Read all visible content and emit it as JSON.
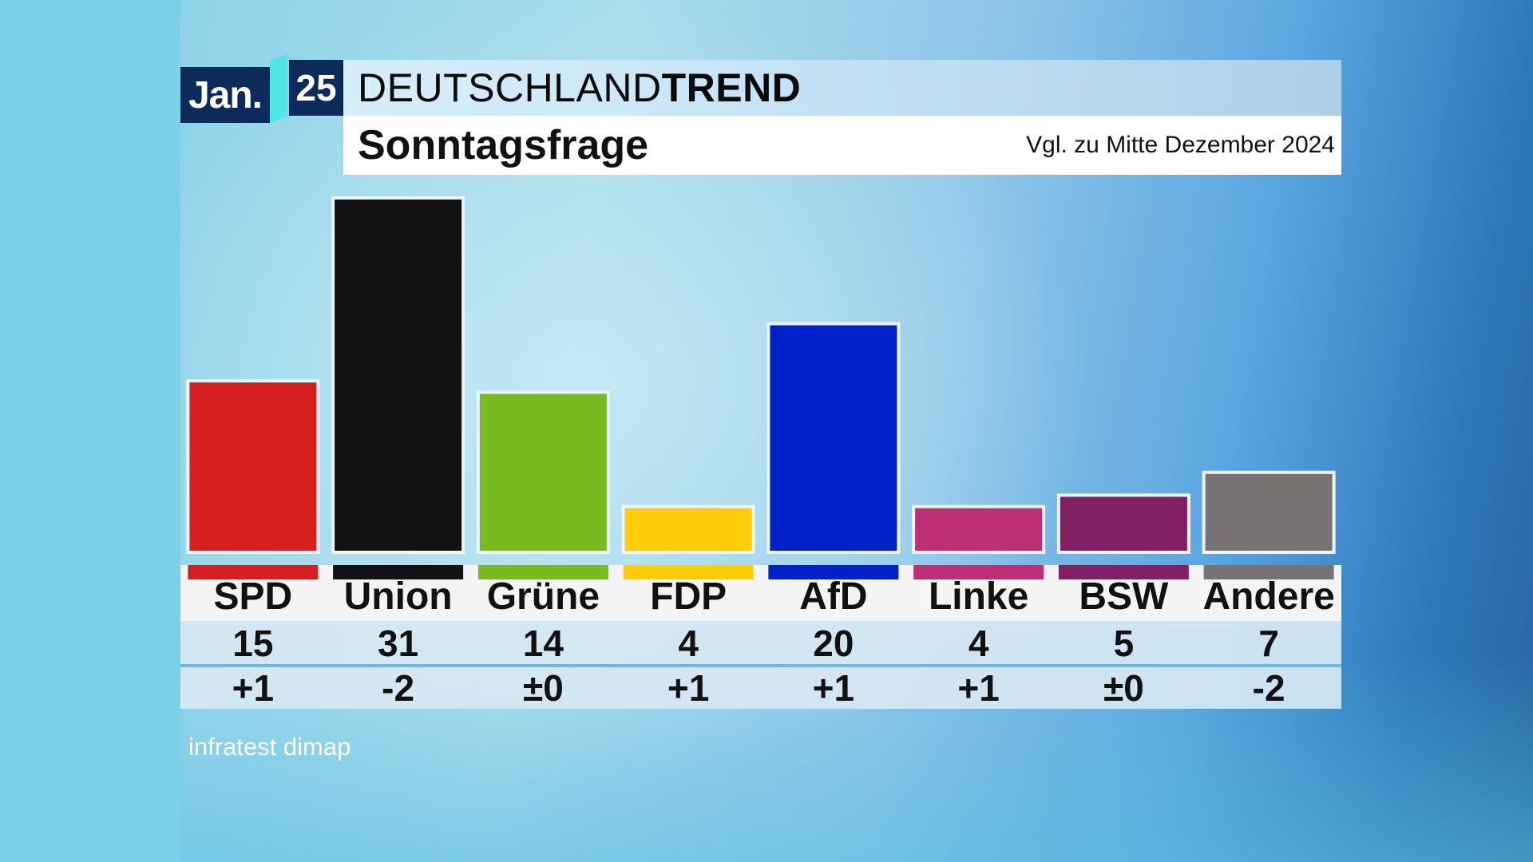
{
  "header": {
    "month": "Jan.",
    "year": "25",
    "brand_light": "DEUTSCHLAND",
    "brand_bold": "TREND",
    "subtitle": "Sonntagsfrage",
    "comparison": "Vgl. zu Mitte Dezember 2024"
  },
  "colors": {
    "SPD": "#d71f1f",
    "Union": "#121212",
    "Grüne": "#78bb1e",
    "FDP": "#ffcc0a",
    "AfD": "#0020c8",
    "Linke": "#be3075",
    "BSW": "#822066",
    "Andere": "#777373"
  },
  "chart_data": {
    "type": "bar",
    "categories": [
      "SPD",
      "Union",
      "Grüne",
      "FDP",
      "AfD",
      "Linke",
      "BSW",
      "Andere"
    ],
    "values": [
      15,
      31,
      14,
      4,
      20,
      4,
      5,
      7
    ],
    "changes": [
      "+1",
      "-2",
      "±0",
      "+1",
      "+1",
      "+1",
      "±0",
      "-2"
    ],
    "title": "Sonntagsfrage",
    "ylim": [
      0,
      31
    ],
    "grid": false,
    "legend": "none"
  },
  "source": "infratest dimap"
}
